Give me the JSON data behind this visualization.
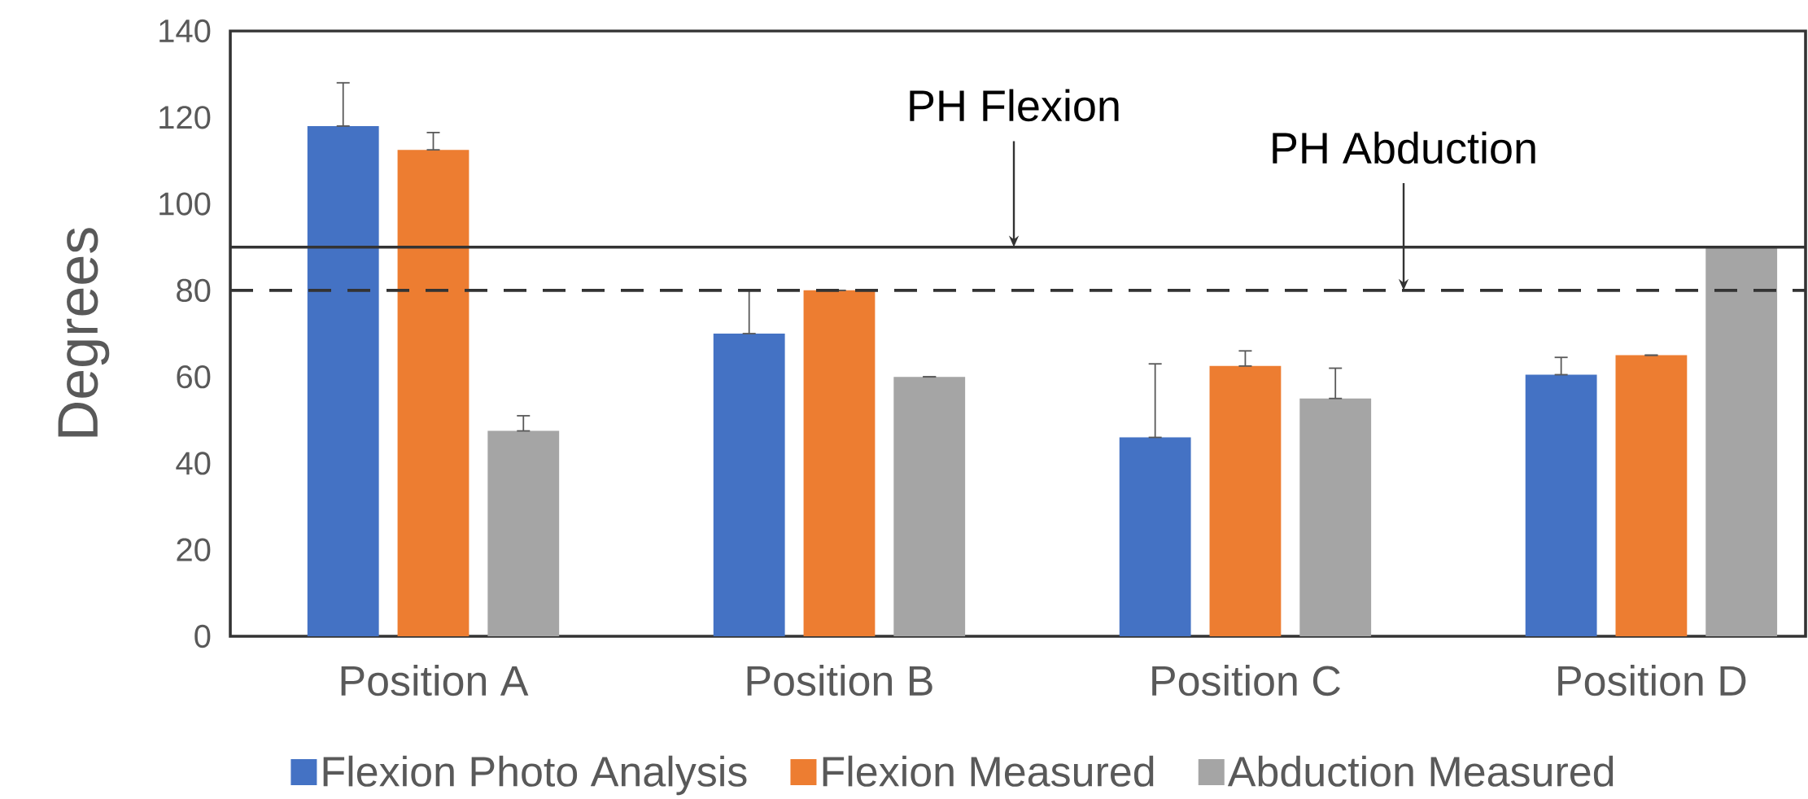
{
  "chart_data": {
    "type": "bar",
    "ylabel": "Degrees",
    "categories": [
      "Position A",
      "Position B",
      "Position C",
      "Position D"
    ],
    "series": [
      {
        "name": "Flexion Photo Analysis",
        "color": "#4472c4",
        "values": [
          118,
          70,
          46,
          60.5
        ],
        "errors": [
          [
            118,
            128
          ],
          [
            70,
            80
          ],
          [
            46,
            63
          ],
          [
            60.5,
            64.5
          ]
        ]
      },
      {
        "name": "Flexion Measured",
        "color": "#ed7d31",
        "values": [
          112.5,
          80,
          62.5,
          65
        ],
        "errors": [
          [
            112.5,
            116.5
          ],
          [
            80,
            80
          ],
          [
            62.5,
            66
          ],
          [
            65,
            65
          ]
        ]
      },
      {
        "name": "Abduction Measured",
        "color": "#a5a5a5",
        "values": [
          47.5,
          60,
          55,
          90
        ],
        "errors": [
          [
            47.5,
            51
          ],
          [
            60,
            60
          ],
          [
            55,
            62
          ],
          null
        ]
      }
    ],
    "ylim": [
      0,
      140
    ],
    "yticks": [
      0,
      20,
      40,
      60,
      80,
      100,
      120,
      140
    ],
    "legend": "bottom",
    "ref_lines": [
      {
        "axis": "y",
        "value": 90,
        "label": "PH Flexion",
        "line_style": "solid",
        "color": "#333333"
      },
      {
        "axis": "y",
        "value": 80,
        "label": "PH Abduction",
        "line_style": "dashed",
        "color": "#333333"
      }
    ]
  }
}
